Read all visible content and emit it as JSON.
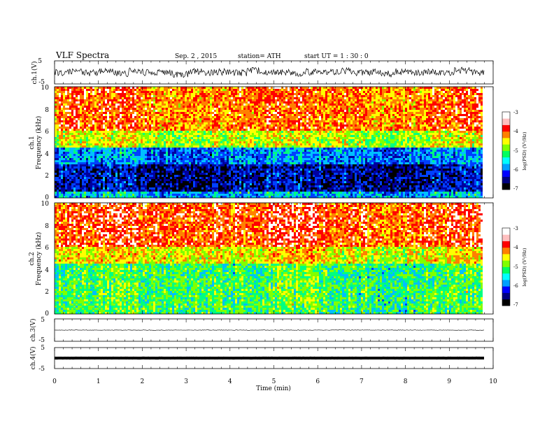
{
  "header": {
    "title": "VLF Spectra",
    "date": "Sep. 2 , 2015",
    "station": "station= ATH",
    "start": "start  UT  =    1  : 30 : 0"
  },
  "chart_data": [
    {
      "type": "line",
      "ylabel": "ch.1(V)",
      "ylim": [
        -5,
        5
      ],
      "y_tick_labels": [
        "5",
        "-5"
      ],
      "series": [
        {
          "values": [
            -0.2,
            0.4,
            -0.6,
            0.8,
            -1.5,
            2.0,
            -0.4,
            0.3,
            -2.6,
            1.2,
            -0.3,
            0.6,
            -0.8,
            2.4,
            -0.5,
            0.2,
            -1.1,
            0.7,
            -0.2,
            1.8,
            -0.6,
            0.3,
            -2.2,
            0.9,
            -0.4,
            0.5,
            -0.9,
            2.6,
            -0.3,
            0.4
          ]
        }
      ]
    },
    {
      "type": "heatmap",
      "ylabel": "Frequency (kHz)",
      "channel_label": "ch.1",
      "ylim": [
        0,
        10
      ],
      "y_tick_labels": [
        "0",
        "2",
        "4",
        "6",
        "8",
        "10"
      ],
      "colorbar": {
        "label": "log(PSD) (V²/Hz)",
        "range": [
          -7,
          -3
        ],
        "tick_labels": [
          "-3",
          "-4",
          "-5",
          "-6",
          "-7"
        ]
      }
    },
    {
      "type": "heatmap",
      "ylabel": "Frequency (kHz)",
      "channel_label": "ch.2",
      "ylim": [
        0,
        10
      ],
      "y_tick_labels": [
        "0",
        "2",
        "4",
        "6",
        "8",
        "10"
      ],
      "colorbar": {
        "label": "log(PSD) (V²/Hz)",
        "range": [
          -7,
          -3
        ],
        "tick_labels": [
          "-3",
          "-4",
          "-5",
          "-6",
          "-7"
        ]
      }
    },
    {
      "type": "line",
      "ylabel": "ch.3(V)",
      "ylim": [
        -5,
        5
      ],
      "y_tick_labels": [
        "5",
        "-5"
      ],
      "series": [
        {
          "values": [
            0,
            0.05,
            -0.05,
            0.03,
            -0.02,
            0.04,
            -0.04,
            0.02,
            -0.03,
            0.05,
            -0.05,
            0.02
          ]
        }
      ]
    },
    {
      "type": "line",
      "ylabel": "ch.4(V)",
      "ylim": [
        -5,
        5
      ],
      "y_tick_labels": [
        "5",
        "-5"
      ],
      "series": [
        {
          "values": [
            0,
            0,
            0,
            0,
            0,
            0,
            0,
            0,
            0,
            0,
            0,
            0
          ]
        }
      ]
    }
  ],
  "x_axis": {
    "label": "Time (min)",
    "range": [
      0,
      10
    ],
    "tick_labels": [
      "0",
      "1",
      "2",
      "3",
      "4",
      "5",
      "6",
      "7",
      "8",
      "9",
      "10"
    ]
  },
  "colors": {
    "spectrum": [
      "#000000",
      "#0000a0",
      "#0040ff",
      "#00c0ff",
      "#00ff80",
      "#80ff00",
      "#ffff00",
      "#ff8000",
      "#ff0000",
      "#ffffff"
    ]
  }
}
